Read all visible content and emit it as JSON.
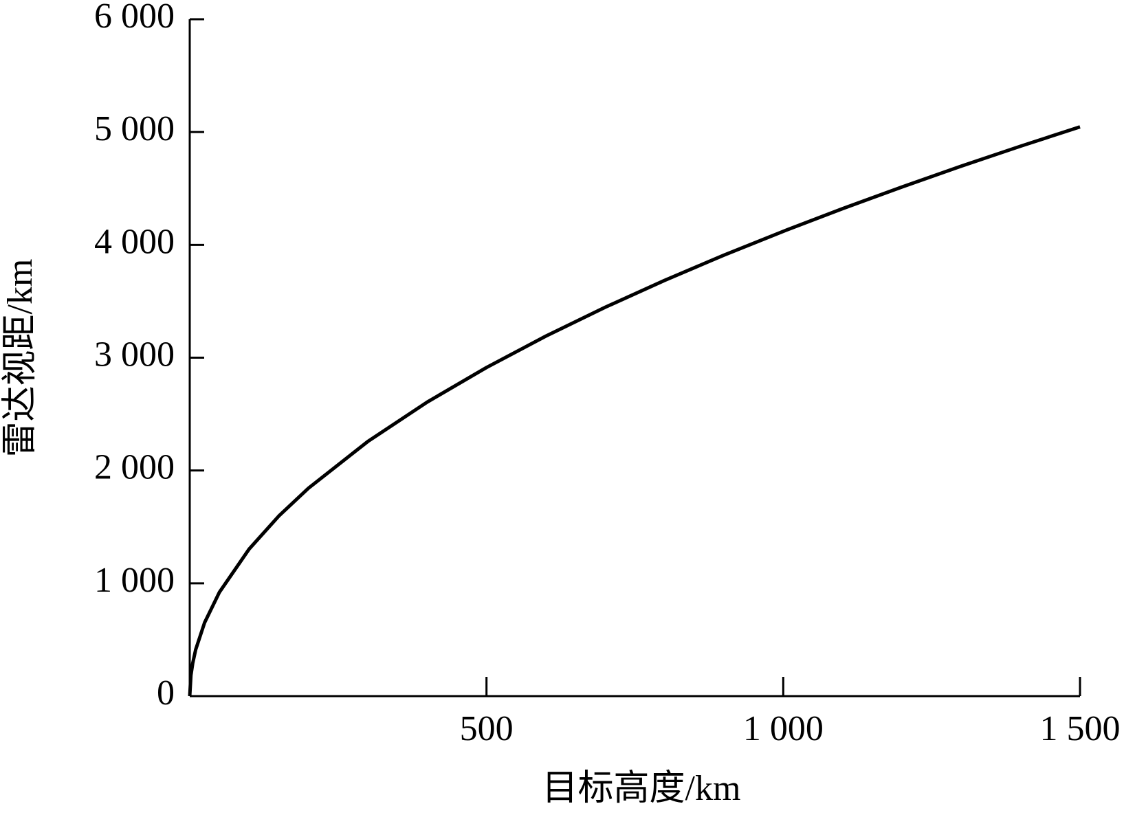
{
  "chart_data": {
    "type": "line",
    "x_label": "目标高度/km",
    "y_label": "雷达视距/km",
    "x": [
      0,
      2,
      5,
      10,
      25,
      50,
      100,
      150,
      200,
      300,
      400,
      500,
      600,
      700,
      800,
      900,
      1000,
      1100,
      1200,
      1300,
      1400,
      1500
    ],
    "series": [
      {
        "color": "#000000",
        "values": [
          0,
          184,
          291,
          412,
          651,
          921,
          1303,
          1596,
          1843,
          2257,
          2606,
          2913,
          3191,
          3447,
          3685,
          3909,
          4120,
          4321,
          4513,
          4698,
          4875,
          5046
        ]
      }
    ],
    "xlim": [
      0,
      1500
    ],
    "xticks": [
      500,
      {
        "value": 1000,
        "label": "1 000"
      },
      {
        "value": 1500,
        "label": "1 500"
      }
    ],
    "ylim": [
      0,
      6000
    ],
    "yticks": [
      0,
      {
        "value": 1000,
        "label": "1 000"
      },
      {
        "value": 2000,
        "label": "2 000"
      },
      {
        "value": 3000,
        "label": "3 000"
      },
      {
        "value": 4000,
        "label": "4 000"
      },
      {
        "value": 5000,
        "label": "5 000"
      },
      {
        "value": 6000,
        "label": "6 000"
      }
    ],
    "grid": false
  }
}
